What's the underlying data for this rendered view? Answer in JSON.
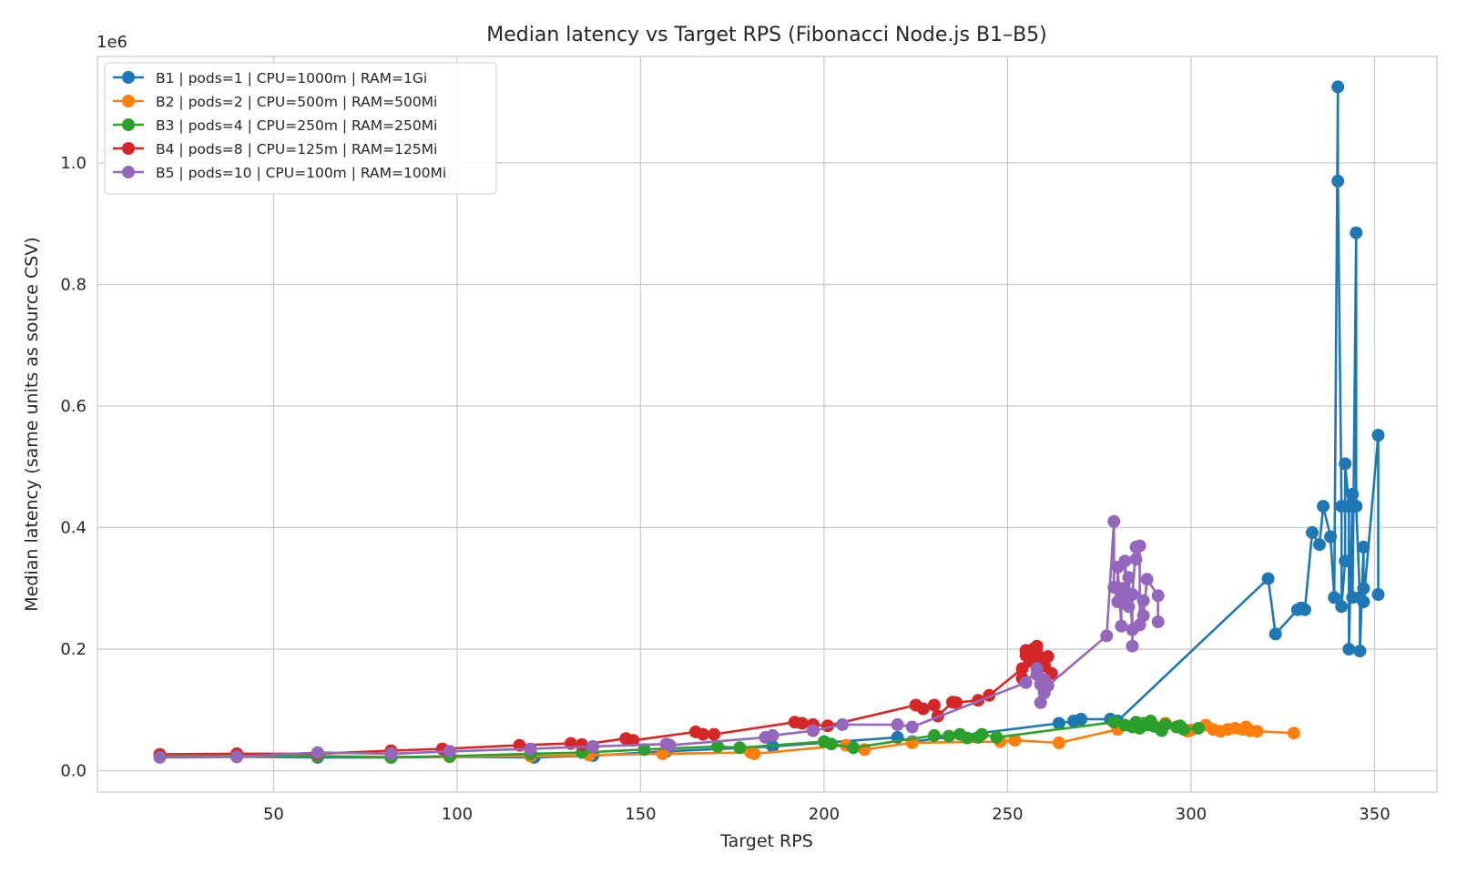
{
  "chart_data": {
    "type": "line",
    "title": "Median latency vs Target RPS (Fibonacci Node.js B1–B5)",
    "xlabel": "Target RPS",
    "ylabel": "Median latency (same units as source CSV)",
    "y_offset_label": "1e6",
    "xlim": [
      2,
      367
    ],
    "ylim": [
      -35000,
      1175000
    ],
    "y_scale_factor": 1000000,
    "xticks": [
      50,
      100,
      150,
      200,
      250,
      300,
      350
    ],
    "xtick_labels": [
      "50",
      "100",
      "150",
      "200",
      "250",
      "300",
      "350"
    ],
    "yticks": [
      0,
      200000,
      400000,
      600000,
      800000,
      1000000
    ],
    "ytick_labels": [
      "0.0",
      "0.2",
      "0.4",
      "0.6",
      "0.8",
      "1.0"
    ],
    "grid": true,
    "legend_position": "top-left",
    "series": [
      {
        "name": "B1 | pods=1 | CPU=1000m | RAM=1Gi",
        "color": "#1f77b4",
        "points": [
          [
            19,
            23000
          ],
          [
            40,
            23000
          ],
          [
            62,
            22000
          ],
          [
            82,
            22000
          ],
          [
            98,
            23000
          ],
          [
            121,
            22000
          ],
          [
            137,
            25000
          ],
          [
            157,
            32000
          ],
          [
            186,
            40000
          ],
          [
            220,
            55000
          ],
          [
            224,
            48000
          ],
          [
            264,
            78000
          ],
          [
            268,
            82000
          ],
          [
            270,
            85000
          ],
          [
            278,
            85000
          ],
          [
            280,
            82000
          ],
          [
            321,
            316000
          ],
          [
            323,
            225000
          ],
          [
            329,
            265000
          ],
          [
            330,
            268000
          ],
          [
            331,
            265000
          ],
          [
            333,
            392000
          ],
          [
            335,
            372000
          ],
          [
            336,
            435000
          ],
          [
            338,
            385000
          ],
          [
            339,
            285000
          ],
          [
            340,
            1125000
          ],
          [
            340,
            970000
          ],
          [
            341,
            435000
          ],
          [
            341,
            270000
          ],
          [
            342,
            345000
          ],
          [
            342,
            505000
          ],
          [
            343,
            435000
          ],
          [
            343,
            200000
          ],
          [
            344,
            455000
          ],
          [
            344,
            285000
          ],
          [
            345,
            885000
          ],
          [
            345,
            435000
          ],
          [
            346,
            285000
          ],
          [
            346,
            197000
          ],
          [
            347,
            368000
          ],
          [
            347,
            300000
          ],
          [
            347,
            278000
          ],
          [
            351,
            552000
          ],
          [
            351,
            290000
          ]
        ]
      },
      {
        "name": "B2 | pods=2 | CPU=500m | RAM=500Mi",
        "color": "#ff7f0e",
        "points": [
          [
            19,
            23000
          ],
          [
            40,
            23000
          ],
          [
            62,
            24000
          ],
          [
            82,
            23000
          ],
          [
            98,
            23000
          ],
          [
            120,
            24000
          ],
          [
            136,
            26000
          ],
          [
            156,
            28000
          ],
          [
            180,
            30000
          ],
          [
            181,
            28000
          ],
          [
            206,
            42000
          ],
          [
            211,
            35000
          ],
          [
            224,
            46000
          ],
          [
            248,
            48000
          ],
          [
            252,
            50000
          ],
          [
            264,
            46000
          ],
          [
            280,
            68000
          ],
          [
            293,
            78000
          ],
          [
            299,
            65000
          ],
          [
            300,
            67000
          ],
          [
            304,
            75000
          ],
          [
            306,
            68000
          ],
          [
            308,
            65000
          ],
          [
            310,
            68000
          ],
          [
            312,
            70000
          ],
          [
            314,
            68000
          ],
          [
            315,
            72000
          ],
          [
            316,
            66000
          ],
          [
            318,
            65000
          ],
          [
            328,
            62000
          ]
        ]
      },
      {
        "name": "B3 | pods=4 | CPU=250m | RAM=250Mi",
        "color": "#2ca02c",
        "points": [
          [
            19,
            23000
          ],
          [
            40,
            24000
          ],
          [
            62,
            24000
          ],
          [
            82,
            22000
          ],
          [
            98,
            24000
          ],
          [
            120,
            28000
          ],
          [
            134,
            30000
          ],
          [
            151,
            35000
          ],
          [
            171,
            40000
          ],
          [
            177,
            38000
          ],
          [
            200,
            48000
          ],
          [
            202,
            44000
          ],
          [
            208,
            38000
          ],
          [
            230,
            58000
          ],
          [
            234,
            57000
          ],
          [
            237,
            60000
          ],
          [
            239,
            54000
          ],
          [
            242,
            55000
          ],
          [
            243,
            60000
          ],
          [
            247,
            55000
          ],
          [
            279,
            80000
          ],
          [
            282,
            75000
          ],
          [
            284,
            72000
          ],
          [
            285,
            80000
          ],
          [
            286,
            70000
          ],
          [
            287,
            78000
          ],
          [
            288,
            75000
          ],
          [
            289,
            82000
          ],
          [
            290,
            73000
          ],
          [
            292,
            66000
          ],
          [
            293,
            76000
          ],
          [
            296,
            72000
          ],
          [
            297,
            74000
          ],
          [
            298,
            68000
          ],
          [
            302,
            70000
          ]
        ]
      },
      {
        "name": "B4 | pods=8 | CPU=125m | RAM=125Mi",
        "color": "#d62728",
        "points": [
          [
            19,
            27000
          ],
          [
            40,
            28000
          ],
          [
            62,
            28000
          ],
          [
            82,
            33000
          ],
          [
            96,
            36000
          ],
          [
            117,
            42000
          ],
          [
            131,
            45000
          ],
          [
            134,
            43000
          ],
          [
            146,
            53000
          ],
          [
            148,
            50000
          ],
          [
            165,
            64000
          ],
          [
            167,
            60000
          ],
          [
            170,
            60000
          ],
          [
            192,
            80000
          ],
          [
            194,
            78000
          ],
          [
            197,
            76000
          ],
          [
            201,
            74000
          ],
          [
            225,
            108000
          ],
          [
            227,
            102000
          ],
          [
            230,
            108000
          ],
          [
            231,
            90000
          ],
          [
            235,
            113000
          ],
          [
            236,
            112000
          ],
          [
            242,
            116000
          ],
          [
            245,
            124000
          ],
          [
            254,
            168000
          ],
          [
            254,
            152000
          ],
          [
            255,
            190000
          ],
          [
            255,
            198000
          ],
          [
            256,
            180000
          ],
          [
            257,
            200000
          ],
          [
            257,
            186000
          ],
          [
            258,
            205000
          ],
          [
            258,
            195000
          ],
          [
            259,
            178000
          ],
          [
            260,
            172000
          ],
          [
            261,
            188000
          ],
          [
            262,
            160000
          ]
        ]
      },
      {
        "name": "B5 | pods=10 | CPU=100m | RAM=100Mi",
        "color": "#9467bd",
        "points": [
          [
            19,
            22000
          ],
          [
            40,
            23000
          ],
          [
            62,
            30000
          ],
          [
            82,
            28000
          ],
          [
            98,
            32000
          ],
          [
            120,
            36000
          ],
          [
            137,
            40000
          ],
          [
            157,
            44000
          ],
          [
            158,
            42000
          ],
          [
            184,
            55000
          ],
          [
            186,
            58000
          ],
          [
            197,
            66000
          ],
          [
            205,
            76000
          ],
          [
            220,
            76000
          ],
          [
            224,
            72000
          ],
          [
            255,
            145000
          ],
          [
            258,
            168000
          ],
          [
            258,
            158000
          ],
          [
            259,
            112000
          ],
          [
            259,
            142000
          ],
          [
            260,
            128000
          ],
          [
            260,
            150000
          ],
          [
            261,
            140000
          ],
          [
            277,
            222000
          ],
          [
            279,
            410000
          ],
          [
            279,
            302000
          ],
          [
            280,
            278000
          ],
          [
            280,
            335000
          ],
          [
            281,
            238000
          ],
          [
            281,
            300000
          ],
          [
            282,
            282000
          ],
          [
            282,
            345000
          ],
          [
            283,
            270000
          ],
          [
            283,
            318000
          ],
          [
            284,
            232000
          ],
          [
            284,
            205000
          ],
          [
            284,
            290000
          ],
          [
            285,
            368000
          ],
          [
            285,
            348000
          ],
          [
            286,
            370000
          ],
          [
            286,
            240000
          ],
          [
            287,
            280000
          ],
          [
            287,
            255000
          ],
          [
            288,
            315000
          ],
          [
            291,
            288000
          ],
          [
            291,
            245000
          ]
        ]
      }
    ]
  }
}
